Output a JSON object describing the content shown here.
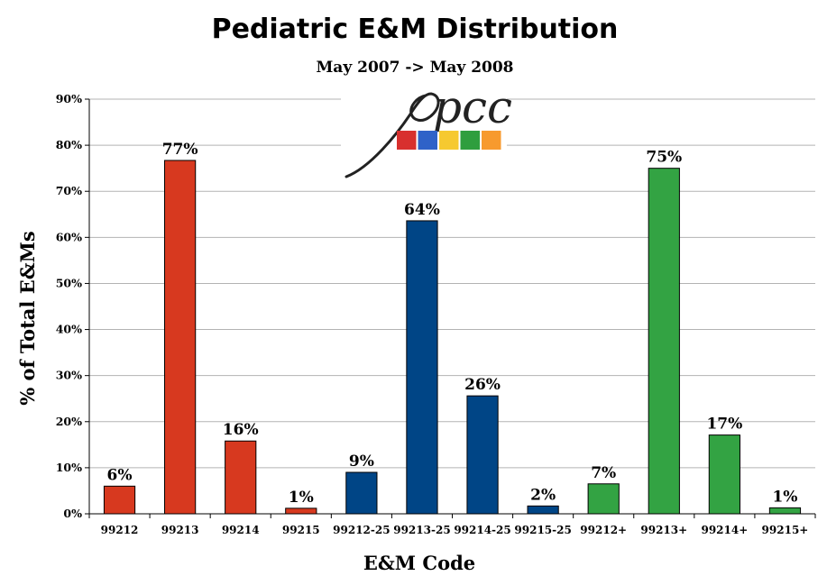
{
  "chart_data": {
    "type": "bar",
    "title": "Pediatric E&M Distribution",
    "subtitle": "May 2007 -> May 2008",
    "xlabel": "E&M Code",
    "ylabel": "% of Total E&Ms",
    "ylim": [
      0,
      90
    ],
    "ytick_step": 10,
    "ytick_labels": [
      "0%",
      "10%",
      "20%",
      "30%",
      "40%",
      "50%",
      "60%",
      "70%",
      "80%",
      "90%"
    ],
    "grid": true,
    "categories": [
      "99212",
      "99213",
      "99214",
      "99215",
      "99212-25",
      "99213-25",
      "99214-25",
      "99215-25",
      "99212+",
      "99213+",
      "99214+",
      "99215+"
    ],
    "values": [
      6,
      77,
      16,
      1,
      9,
      64,
      26,
      2,
      7,
      75,
      17,
      1
    ],
    "heights": [
      6,
      76.7,
      15.8,
      1.2,
      9.0,
      63.6,
      25.6,
      1.7,
      6.5,
      75.0,
      17.1,
      1.3
    ],
    "data_labels": [
      "6%",
      "77%",
      "16%",
      "1%",
      "9%",
      "64%",
      "26%",
      "2%",
      "7%",
      "75%",
      "17%",
      "1%"
    ],
    "colors": [
      "#d7391f",
      "#d7391f",
      "#d7391f",
      "#d7391f",
      "#004586",
      "#004586",
      "#004586",
      "#004586",
      "#33a343",
      "#33a343",
      "#33a343",
      "#33a343"
    ]
  },
  "logo": {
    "text": "pcc",
    "swatches": [
      "#d8302e",
      "#2f62c8",
      "#f6c930",
      "#2f9e3e",
      "#f79a2e"
    ]
  }
}
